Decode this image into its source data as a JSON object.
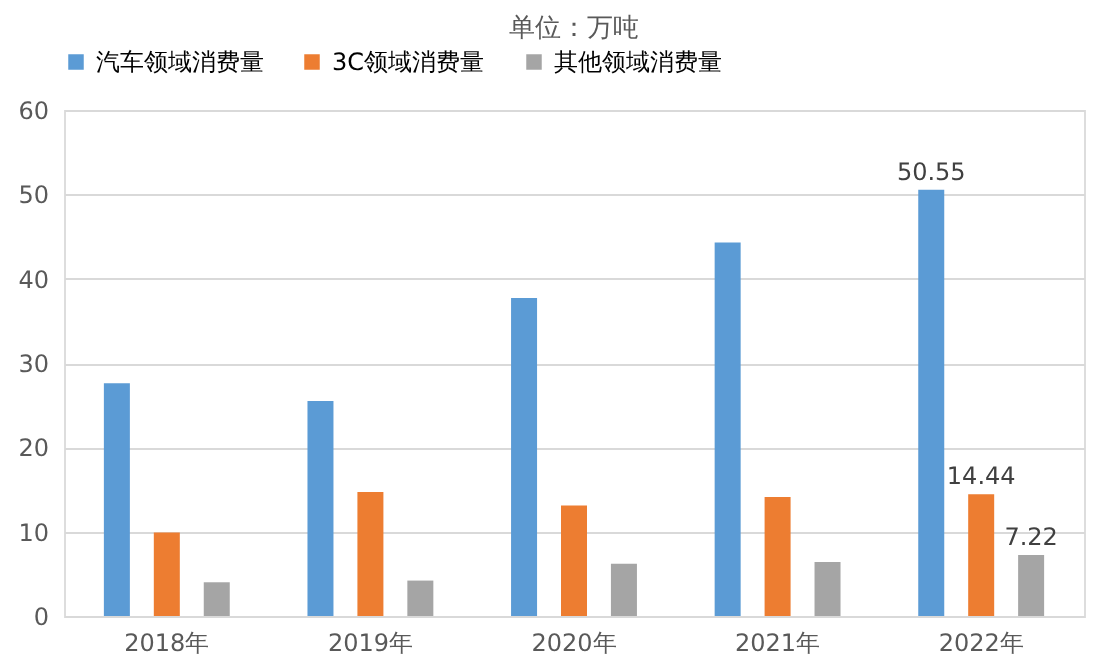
{
  "chart_data": {
    "type": "bar",
    "title": "单位：万吨",
    "categories": [
      "2018年",
      "2019年",
      "2020年",
      "2021年",
      "2022年"
    ],
    "series": [
      {
        "name": "汽车领域消费量",
        "color": "#5b9bd5",
        "values": [
          27.6,
          25.5,
          37.7,
          44.3,
          50.55
        ],
        "value_labels": [
          null,
          null,
          null,
          null,
          "50.55"
        ]
      },
      {
        "name": "3C领域消费量",
        "color": "#ed7d31",
        "values": [
          9.9,
          14.7,
          13.1,
          14.1,
          14.44
        ],
        "value_labels": [
          null,
          null,
          null,
          null,
          "14.44"
        ]
      },
      {
        "name": "其他领域消费量",
        "color": "#a5a5a5",
        "values": [
          4.0,
          4.2,
          6.2,
          6.4,
          7.22
        ],
        "value_labels": [
          null,
          null,
          null,
          null,
          "7.22"
        ]
      }
    ],
    "ylim": [
      0,
      60
    ],
    "yticks": [
      0,
      10,
      20,
      30,
      40,
      50,
      60
    ],
    "grid": "y",
    "legend": "top"
  }
}
